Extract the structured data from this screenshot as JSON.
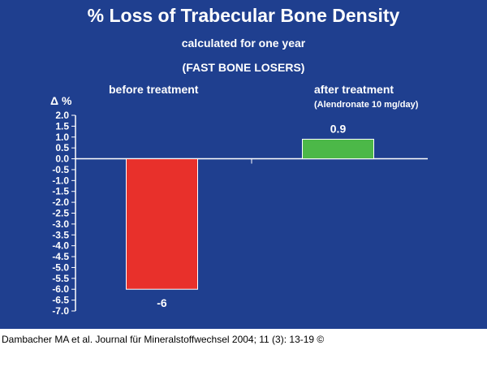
{
  "chart_data": {
    "type": "bar",
    "title": "% Loss of Trabecular Bone Density",
    "subtitle": "calculated for one year",
    "subtitle2": "(FAST BONE LOSERS)",
    "ylabel": "Δ %",
    "categories": [
      "before treatment",
      "after treatment"
    ],
    "category_notes": [
      "",
      "(Alendronate 10 mg/day)"
    ],
    "values": [
      -6,
      0.9
    ],
    "value_labels": [
      "-6",
      "0.9"
    ],
    "colors": [
      "#e8302b",
      "#4cb848"
    ],
    "ylim": [
      -7.0,
      2.0
    ],
    "yticks": [
      "2.0",
      "1.5",
      "1.0",
      "0.5",
      "0.0",
      "-0.5",
      "-1.0",
      "-1.5",
      "-2.0",
      "-2.5",
      "-3.0",
      "-3.5",
      "-4.0",
      "-4.5",
      "-5.0",
      "-5.5",
      "-6.0",
      "-6.5",
      "-7.0"
    ],
    "grid": false,
    "legend": "none"
  },
  "source": "Dambacher MA et al. Journal für Mineralstoffwechsel 2004; 11 (3): 13-19 ©",
  "colors": {
    "background": "#1f3f8f",
    "text": "#ffffff",
    "axis": "#ffffff"
  }
}
